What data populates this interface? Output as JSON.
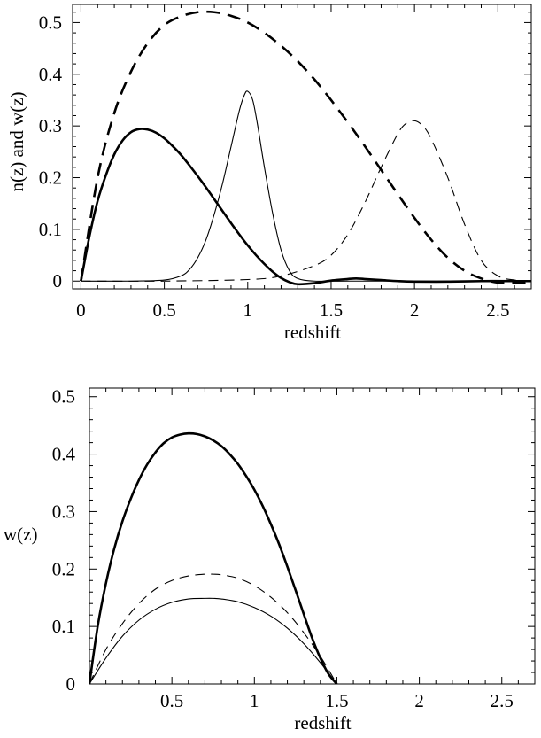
{
  "chart_data": [
    {
      "type": "line",
      "title": "",
      "xlabel": "redshift",
      "ylabel": "n(z) and w(z)",
      "xlim": [
        -0.05,
        2.7
      ],
      "ylim": [
        -0.015,
        0.535
      ],
      "x_ticks": [
        0,
        0.5,
        1,
        1.5,
        2,
        2.5
      ],
      "x_tick_labels": [
        "0",
        "0.5",
        "1",
        "1.5",
        "2",
        "2.5"
      ],
      "y_ticks": [
        0,
        0.1,
        0.2,
        0.3,
        0.4,
        0.5
      ],
      "y_tick_labels": [
        "0",
        "0.1",
        "0.2",
        "0.3",
        "0.4",
        "0.5"
      ],
      "grid": false,
      "legend": "none",
      "series": [
        {
          "style": "thick-dashed",
          "x": [
            0,
            0.1,
            0.2,
            0.3,
            0.4,
            0.5,
            0.6,
            0.7,
            0.8,
            0.9,
            1.0,
            1.1,
            1.2,
            1.3,
            1.4,
            1.5,
            1.6,
            1.7,
            1.8,
            1.9,
            2.0,
            2.1,
            2.2,
            2.3,
            2.4,
            2.5,
            2.6,
            2.7
          ],
          "y": [
            0,
            0.2,
            0.325,
            0.405,
            0.46,
            0.495,
            0.512,
            0.52,
            0.52,
            0.513,
            0.5,
            0.48,
            0.455,
            0.425,
            0.39,
            0.35,
            0.307,
            0.262,
            0.215,
            0.168,
            0.122,
            0.08,
            0.045,
            0.02,
            0.005,
            -0.003,
            -0.004,
            -0.002
          ]
        },
        {
          "style": "thick-solid",
          "x": [
            0,
            0.05,
            0.1,
            0.15,
            0.2,
            0.25,
            0.3,
            0.35,
            0.4,
            0.45,
            0.5,
            0.55,
            0.6,
            0.65,
            0.7,
            0.75,
            0.8,
            0.85,
            0.9,
            0.95,
            1.0,
            1.05,
            1.1,
            1.15,
            1.2,
            1.25,
            1.3,
            1.4,
            1.5,
            1.6,
            1.65,
            1.7,
            1.8,
            1.9,
            2.0,
            2.2,
            2.4,
            2.6,
            2.7
          ],
          "y": [
            0,
            0.085,
            0.155,
            0.205,
            0.245,
            0.272,
            0.288,
            0.294,
            0.293,
            0.287,
            0.276,
            0.261,
            0.244,
            0.224,
            0.203,
            0.181,
            0.158,
            0.135,
            0.112,
            0.09,
            0.069,
            0.05,
            0.033,
            0.018,
            0.006,
            -0.002,
            -0.006,
            -0.004,
            0.001,
            0.004,
            0.005,
            0.004,
            0.002,
            0.0,
            -0.001,
            -0.001,
            0.0,
            0.0,
            0.0
          ]
        },
        {
          "style": "thin-solid",
          "x": [
            0,
            0.3,
            0.5,
            0.6,
            0.65,
            0.7,
            0.75,
            0.8,
            0.85,
            0.9,
            0.95,
            0.98,
            1.0,
            1.03,
            1.06,
            1.1,
            1.15,
            1.2,
            1.25,
            1.3,
            1.4,
            1.6,
            2.0,
            2.7
          ],
          "y": [
            0,
            0.0,
            0.002,
            0.01,
            0.022,
            0.045,
            0.08,
            0.13,
            0.19,
            0.26,
            0.33,
            0.36,
            0.367,
            0.35,
            0.3,
            0.22,
            0.13,
            0.06,
            0.02,
            0.005,
            0.0,
            0.0,
            0.0,
            0.0
          ]
        },
        {
          "style": "thin-dashed",
          "x": [
            0,
            0.5,
            1.0,
            1.2,
            1.4,
            1.5,
            1.6,
            1.7,
            1.8,
            1.9,
            1.95,
            2.0,
            2.05,
            2.1,
            2.2,
            2.3,
            2.4,
            2.5,
            2.6,
            2.7
          ],
          "y": [
            0,
            0.0,
            0.003,
            0.01,
            0.03,
            0.05,
            0.09,
            0.15,
            0.22,
            0.285,
            0.305,
            0.31,
            0.3,
            0.275,
            0.2,
            0.11,
            0.04,
            0.01,
            0.002,
            0.0
          ]
        }
      ]
    },
    {
      "type": "line",
      "title": "",
      "xlabel": "redshift",
      "ylabel": "w(z)",
      "xlim": [
        0,
        2.7
      ],
      "ylim": [
        0,
        0.515
      ],
      "x_ticks": [
        0.5,
        1,
        1.5,
        2,
        2.5
      ],
      "x_tick_labels": [
        "0.5",
        "1",
        "1.5",
        "2",
        "2.5"
      ],
      "y_ticks": [
        0,
        0.1,
        0.2,
        0.3,
        0.4,
        0.5
      ],
      "y_tick_labels": [
        "0",
        "0.1",
        "0.2",
        "0.3",
        "0.4",
        "0.5"
      ],
      "grid": false,
      "legend": "none",
      "series": [
        {
          "style": "thick-solid",
          "x": [
            0,
            0.05,
            0.1,
            0.15,
            0.2,
            0.25,
            0.3,
            0.35,
            0.4,
            0.45,
            0.5,
            0.55,
            0.6,
            0.65,
            0.7,
            0.75,
            0.8,
            0.85,
            0.9,
            0.95,
            1.0,
            1.05,
            1.1,
            1.15,
            1.2,
            1.25,
            1.3,
            1.35,
            1.4,
            1.45,
            1.5
          ],
          "y": [
            0,
            0.1,
            0.175,
            0.235,
            0.283,
            0.322,
            0.355,
            0.382,
            0.403,
            0.419,
            0.429,
            0.434,
            0.436,
            0.435,
            0.431,
            0.424,
            0.414,
            0.4,
            0.383,
            0.362,
            0.338,
            0.31,
            0.278,
            0.243,
            0.204,
            0.163,
            0.121,
            0.08,
            0.045,
            0.017,
            0
          ]
        },
        {
          "style": "thin-dashed",
          "x": [
            0,
            0.1,
            0.2,
            0.3,
            0.4,
            0.5,
            0.6,
            0.7,
            0.75,
            0.8,
            0.9,
            1.0,
            1.1,
            1.2,
            1.3,
            1.4,
            1.5
          ],
          "y": [
            0,
            0.06,
            0.105,
            0.14,
            0.165,
            0.18,
            0.188,
            0.191,
            0.191,
            0.19,
            0.184,
            0.171,
            0.151,
            0.124,
            0.089,
            0.048,
            0
          ]
        },
        {
          "style": "thin-solid",
          "x": [
            0,
            0.1,
            0.2,
            0.3,
            0.4,
            0.5,
            0.6,
            0.7,
            0.75,
            0.8,
            0.9,
            1.0,
            1.1,
            1.2,
            1.3,
            1.4,
            1.5
          ],
          "y": [
            0,
            0.045,
            0.083,
            0.111,
            0.13,
            0.142,
            0.148,
            0.149,
            0.149,
            0.148,
            0.143,
            0.133,
            0.118,
            0.097,
            0.07,
            0.037,
            0
          ]
        }
      ]
    }
  ]
}
